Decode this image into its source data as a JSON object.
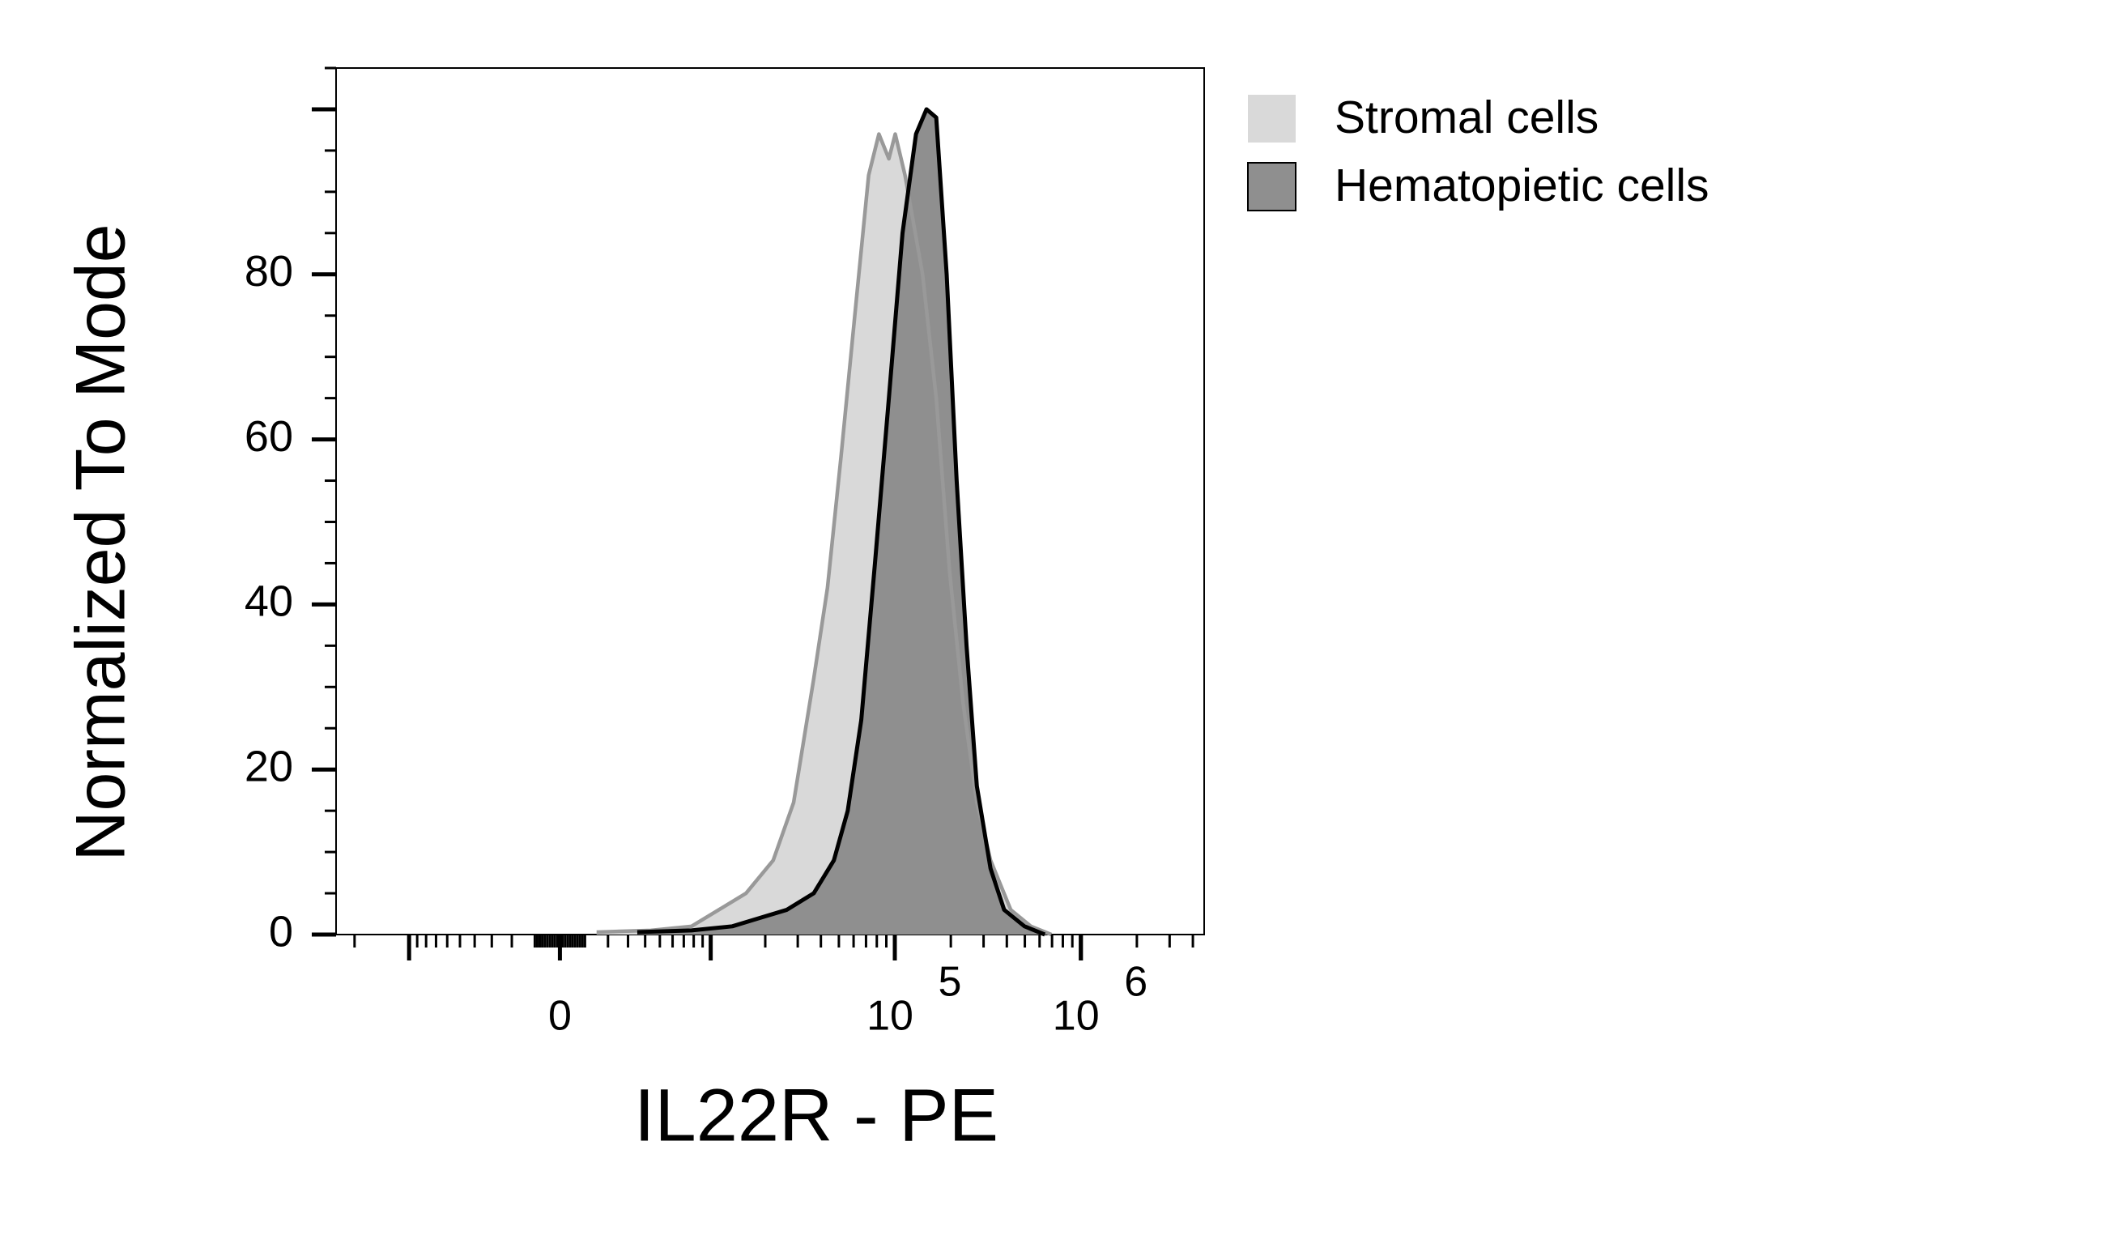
{
  "chart_data": {
    "type": "area",
    "xlabel": "IL22R - PE",
    "ylabel": "Normalized To Mode",
    "xscale": "biexponential",
    "xscale_linear_width": 3170,
    "xlim": [
      -25200,
      4600000
    ],
    "xticks": [
      {
        "value": 0,
        "label": "0"
      },
      {
        "value": 100000,
        "label": "10",
        "power": "5"
      },
      {
        "value": 1000000,
        "label": "10",
        "power": "6"
      }
    ],
    "ylim": [
      0,
      105
    ],
    "yticks": [
      0,
      20,
      40,
      60,
      80,
      {
        "value": 100,
        "label": null
      }
    ],
    "legend": "right",
    "series": [
      {
        "name": "Stromal cells",
        "color": "#d9d9d9",
        "line_color": "#999999",
        "x": [
          1490,
          4370,
          7770,
          11100,
          15700,
          22100,
          28500,
          36600,
          43400,
          51400,
          60900,
          72300,
          82100,
          92900,
          100500,
          113500,
          141000,
          167000,
          197000,
          233000,
          276000,
          327000,
          420000,
          539000,
          694000
        ],
        "values": [
          0.3,
          0.5,
          1,
          3,
          5,
          9,
          16,
          31,
          42,
          58,
          75,
          92,
          97,
          94,
          97,
          92,
          80,
          65,
          44,
          28,
          16,
          9,
          3,
          1,
          0
        ]
      },
      {
        "name": "Hematopietic cells",
        "color": "#8f8f8f",
        "line_color": "#000000",
        "x": [
          3520,
          7770,
          13200,
          18600,
          26200,
          36600,
          47000,
          55800,
          66000,
          78200,
          92900,
          110000,
          130000,
          148000,
          167000,
          190000,
          215000,
          243000,
          276000,
          327000,
          387000,
          498000,
          640000
        ],
        "values": [
          0.3,
          0.5,
          1,
          2,
          3,
          5,
          9,
          15,
          26,
          45,
          65,
          85,
          97,
          100,
          99,
          80,
          55,
          35,
          18,
          8,
          3,
          1,
          0
        ]
      }
    ]
  }
}
